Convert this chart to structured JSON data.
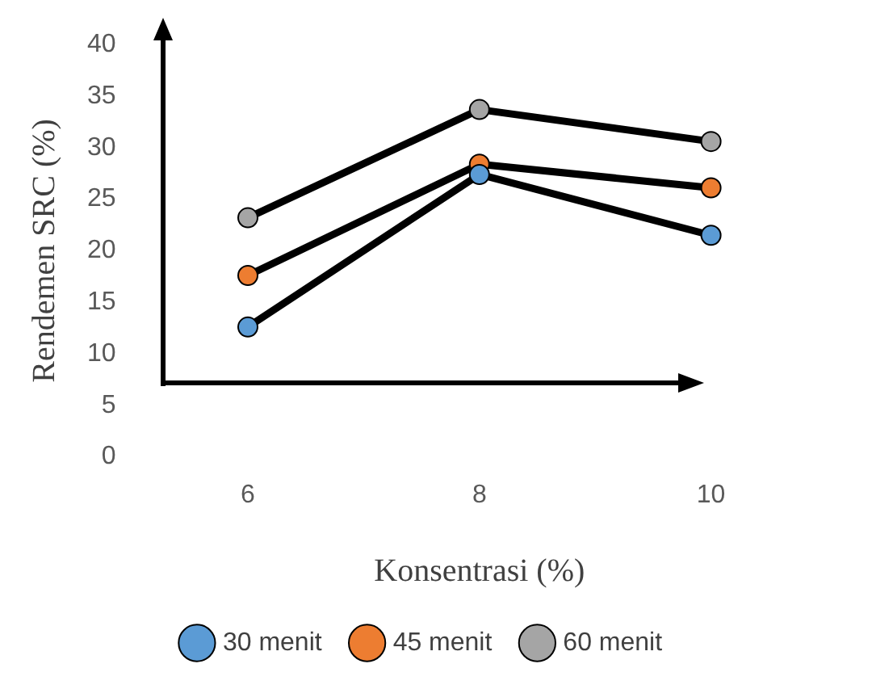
{
  "chart_data": {
    "type": "line",
    "xlabel": "Konsentrasi (%)",
    "ylabel": "Rendemen SRC (%)",
    "categories": [
      "6",
      "8",
      "10"
    ],
    "series": [
      {
        "name": "30 menit",
        "color": "#5b9bd5",
        "values": [
          12.6,
          27.4,
          21.5
        ]
      },
      {
        "name": "45 menit",
        "color": "#ed7d31",
        "values": [
          17.6,
          28.4,
          26.1
        ]
      },
      {
        "name": "60 menit",
        "color": "#a5a5a5",
        "values": [
          23.2,
          33.7,
          30.6
        ]
      }
    ],
    "ylim": [
      0,
      40
    ],
    "yticks": [
      0,
      5,
      10,
      15,
      20,
      25,
      30,
      35,
      40
    ],
    "grid": false,
    "legend": "bottom",
    "marker": "circle",
    "line_style": "solid"
  }
}
